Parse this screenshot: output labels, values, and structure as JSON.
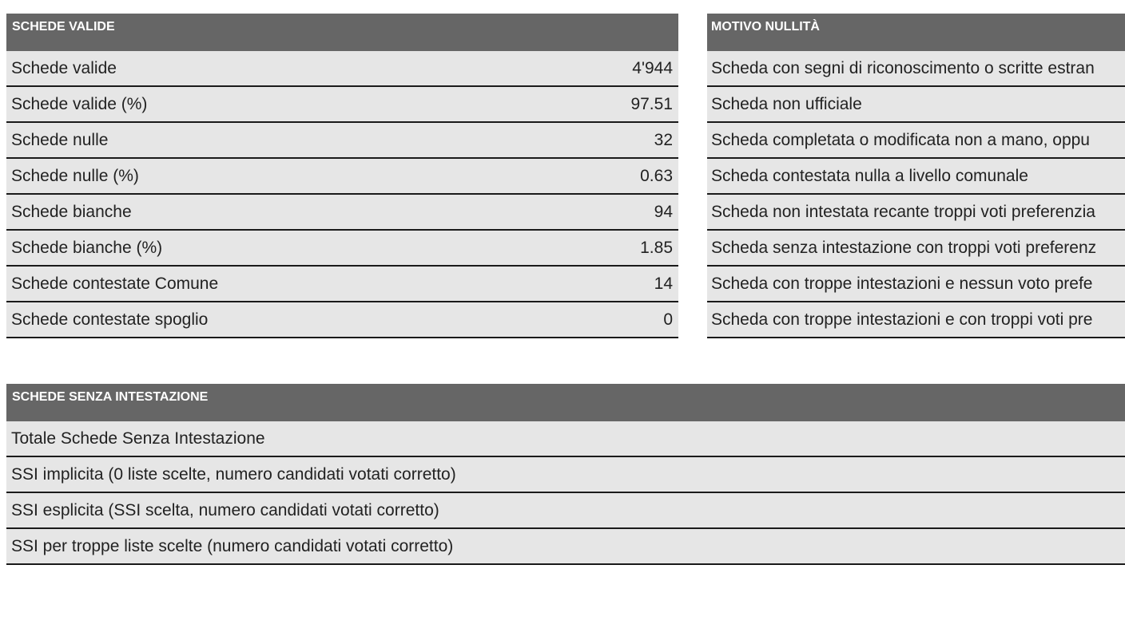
{
  "valid_section": {
    "title": "SCHEDE VALIDE",
    "rows": [
      {
        "label": "Schede valide",
        "value": "4'944"
      },
      {
        "label": "Schede valide (%)",
        "value": "97.51"
      },
      {
        "label": "Schede nulle",
        "value": "32"
      },
      {
        "label": "Schede nulle (%)",
        "value": "0.63"
      },
      {
        "label": "Schede bianche",
        "value": "94"
      },
      {
        "label": "Schede bianche (%)",
        "value": "1.85"
      },
      {
        "label": "Schede contestate Comune",
        "value": "14"
      },
      {
        "label": "Schede contestate spoglio",
        "value": "0"
      }
    ]
  },
  "null_section": {
    "title": "MOTIVO NULLITÀ",
    "rows": [
      {
        "label": "Scheda con segni di riconoscimento o scritte estran"
      },
      {
        "label": "Scheda non ufficiale"
      },
      {
        "label": "Scheda completata o modificata non a mano, oppu"
      },
      {
        "label": "Scheda contestata nulla a livello comunale"
      },
      {
        "label": "Scheda non intestata recante troppi voti preferenzia"
      },
      {
        "label": "Scheda senza intestazione con troppi voti preferenz"
      },
      {
        "label": "Scheda con troppe intestazioni e nessun voto prefe"
      },
      {
        "label": "Scheda con troppe intestazioni e con troppi voti pre"
      }
    ]
  },
  "ssi_section": {
    "title": "SCHEDE SENZA INTESTAZIONE",
    "rows": [
      {
        "label": "Totale Schede Senza Intestazione"
      },
      {
        "label": "SSI implicita (0 liste scelte, numero candidati votati corretto)"
      },
      {
        "label": "SSI esplicita (SSI scelta, numero candidati votati corretto)"
      },
      {
        "label": "SSI per troppe liste scelte (numero candidati votati corretto)"
      }
    ]
  }
}
